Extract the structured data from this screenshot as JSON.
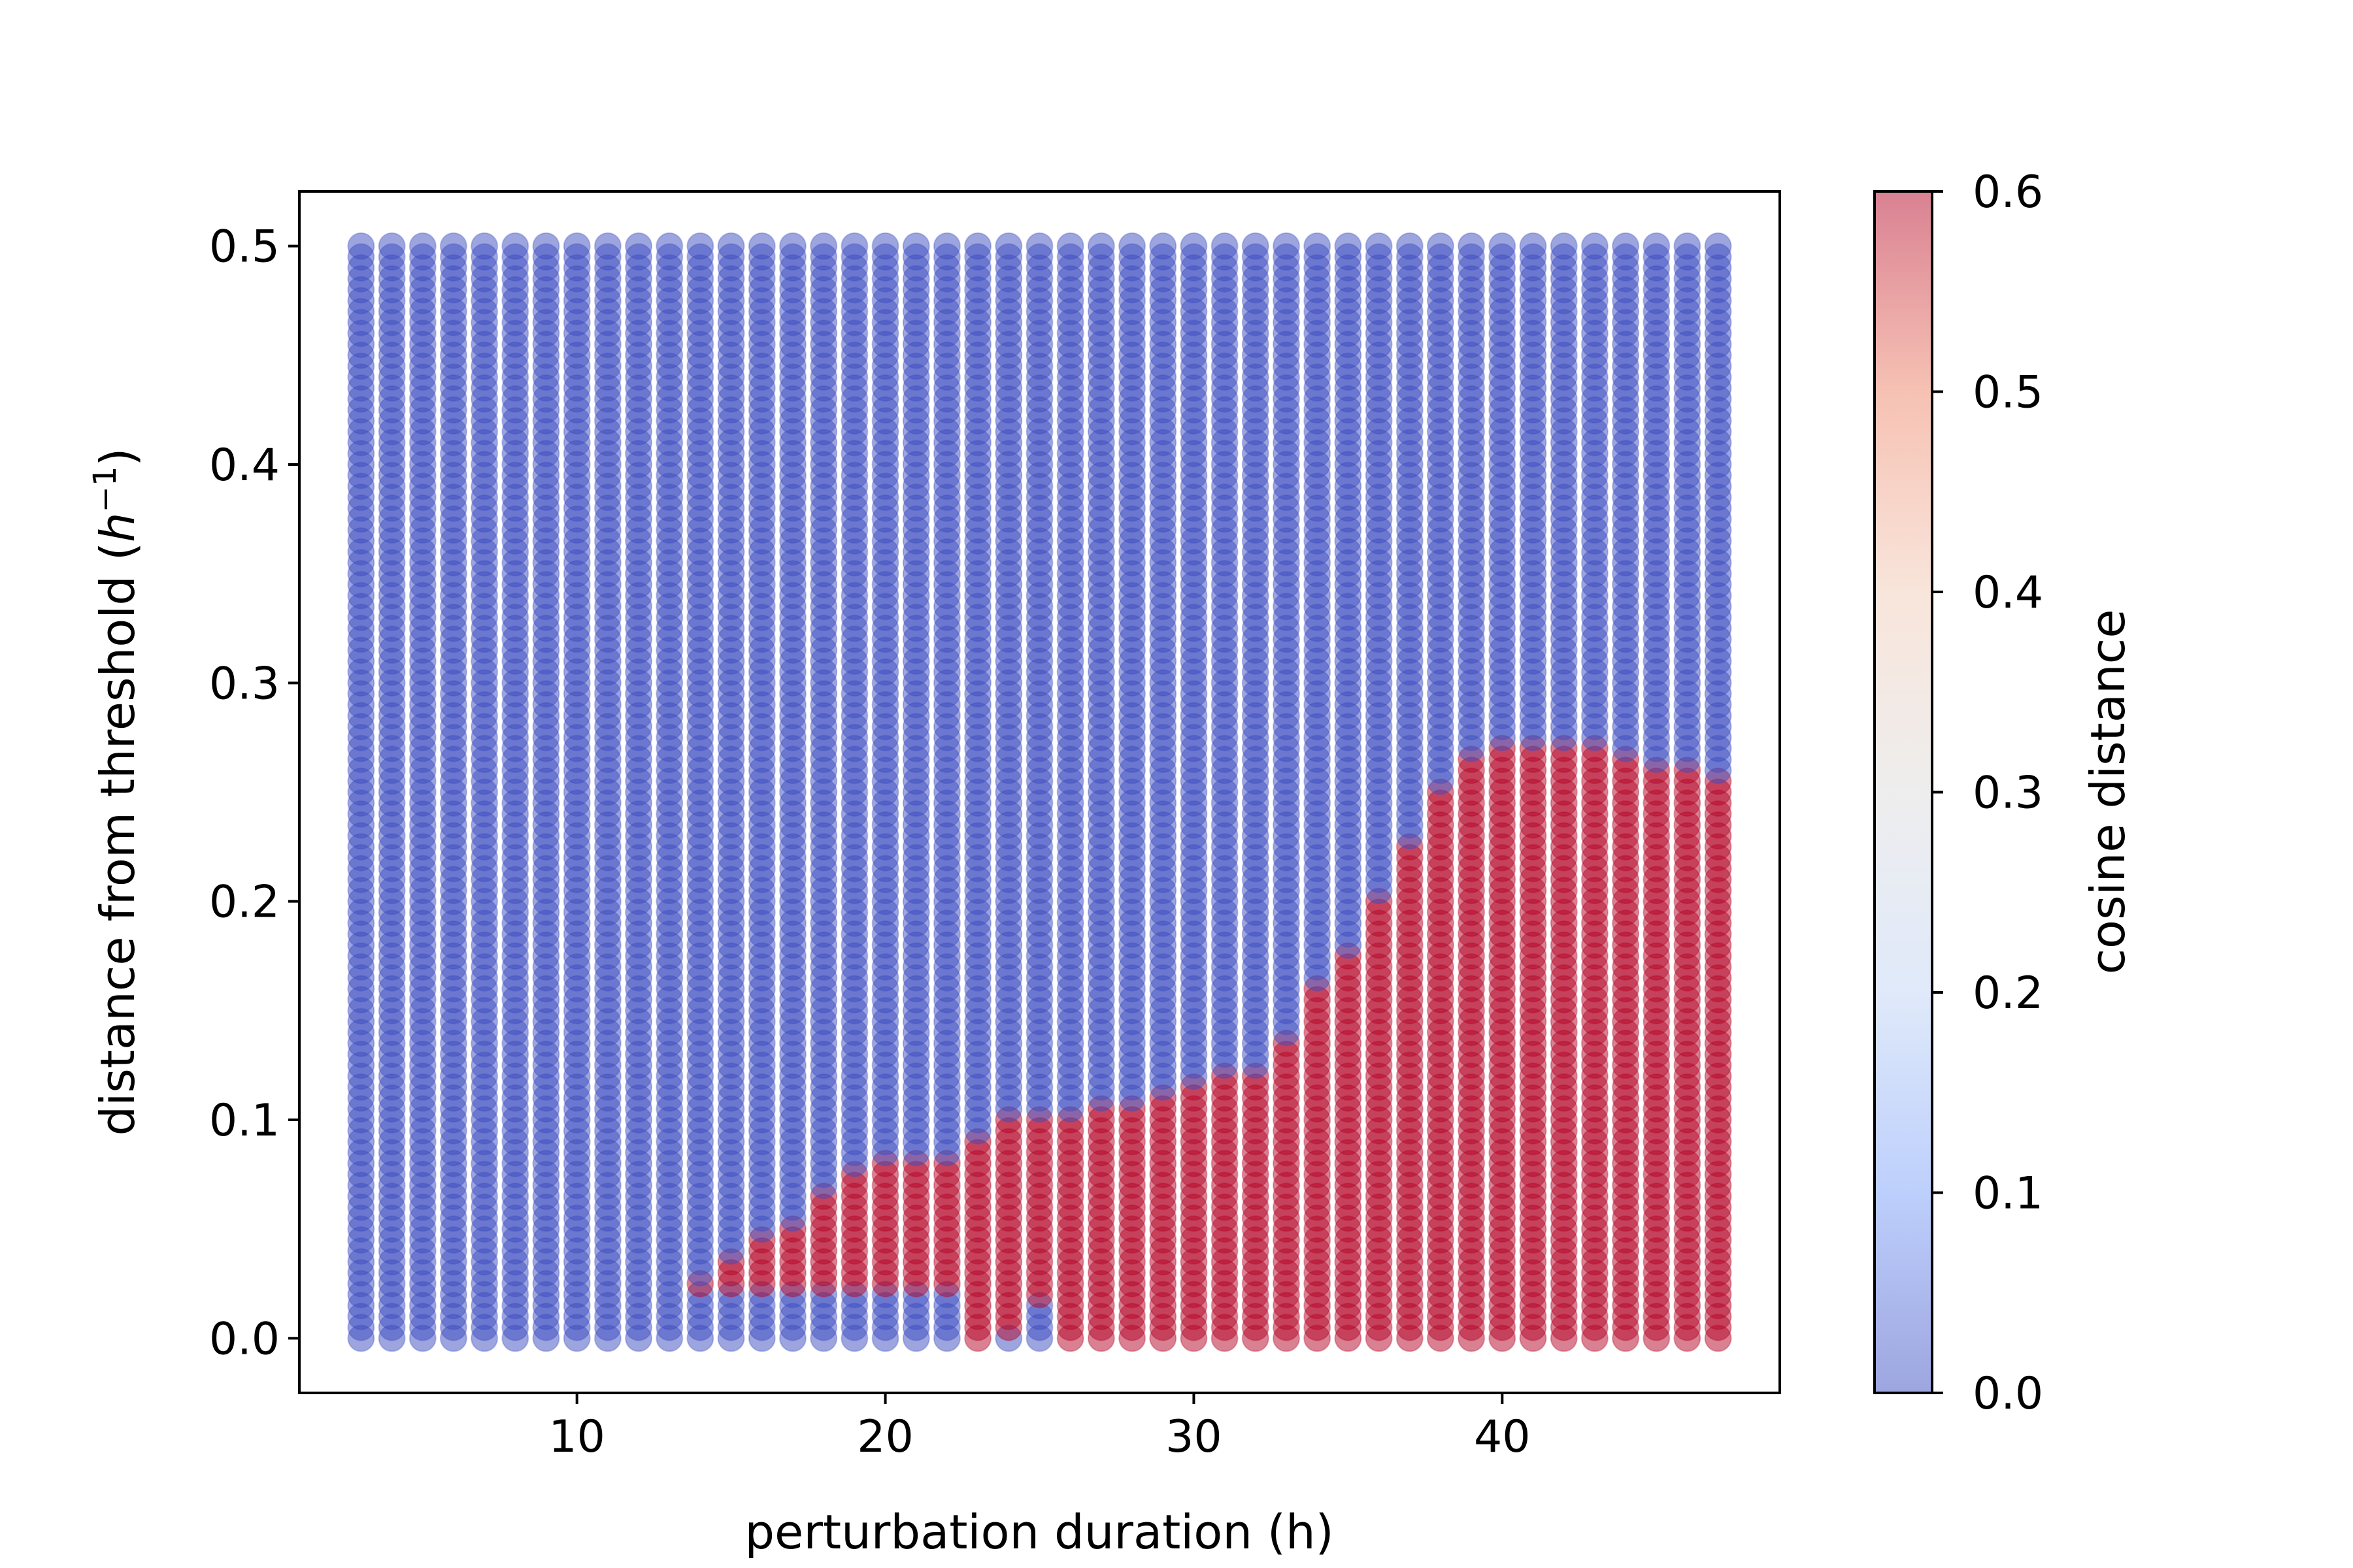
{
  "chart_data": {
    "type": "scatter",
    "xlabel": "perturbation duration (h)",
    "ylabel_text": "distance from threshold (",
    "ylabel_unit_base": "h",
    "ylabel_unit_exp": "−1",
    "ylabel_close": ")",
    "xlim": [
      1,
      49
    ],
    "ylim": [
      -0.025,
      0.525
    ],
    "x_ticks": [
      10,
      20,
      30,
      40
    ],
    "x_tick_labels": [
      "10",
      "20",
      "30",
      "40"
    ],
    "y_ticks": [
      0.0,
      0.1,
      0.2,
      0.3,
      0.4,
      0.5
    ],
    "y_tick_labels": [
      "0.0",
      "0.1",
      "0.2",
      "0.3",
      "0.4",
      "0.5"
    ],
    "x_values": {
      "start": 3,
      "end": 47,
      "step": 1
    },
    "y_values": {
      "start": 0.0,
      "end": 0.5,
      "step": 0.005
    },
    "colormap": "coolwarm",
    "marker_alpha": 0.5,
    "color_low": "#3b4cc0",
    "color_high": "#b40426",
    "colorbar": {
      "label": "cosine distance",
      "range": [
        0.0,
        0.6
      ],
      "ticks": [
        0.0,
        0.1,
        0.2,
        0.3,
        0.4,
        0.5,
        0.6
      ],
      "tick_labels": [
        "0.0",
        "0.1",
        "0.2",
        "0.3",
        "0.4",
        "0.5",
        "0.6"
      ]
    },
    "low_value": 0.0,
    "high_value": 0.6,
    "boundary_upper": [
      {
        "x": 14,
        "y": 0.025
      },
      {
        "x": 15,
        "y": 0.035
      },
      {
        "x": 16,
        "y": 0.045
      },
      {
        "x": 17,
        "y": 0.05
      },
      {
        "x": 18,
        "y": 0.065
      },
      {
        "x": 19,
        "y": 0.075
      },
      {
        "x": 20,
        "y": 0.08
      },
      {
        "x": 21,
        "y": 0.08
      },
      {
        "x": 22,
        "y": 0.08
      },
      {
        "x": 23,
        "y": 0.09
      },
      {
        "x": 24,
        "y": 0.1
      },
      {
        "x": 25,
        "y": 0.1
      },
      {
        "x": 26,
        "y": 0.1
      },
      {
        "x": 27,
        "y": 0.105
      },
      {
        "x": 28,
        "y": 0.105
      },
      {
        "x": 29,
        "y": 0.11
      },
      {
        "x": 30,
        "y": 0.115
      },
      {
        "x": 31,
        "y": 0.12
      },
      {
        "x": 32,
        "y": 0.12
      },
      {
        "x": 33,
        "y": 0.135
      },
      {
        "x": 34,
        "y": 0.16
      },
      {
        "x": 35,
        "y": 0.175
      },
      {
        "x": 36,
        "y": 0.2
      },
      {
        "x": 37,
        "y": 0.225
      },
      {
        "x": 38,
        "y": 0.25
      },
      {
        "x": 39,
        "y": 0.265
      },
      {
        "x": 40,
        "y": 0.27
      },
      {
        "x": 41,
        "y": 0.27
      },
      {
        "x": 42,
        "y": 0.27
      },
      {
        "x": 43,
        "y": 0.27
      },
      {
        "x": 44,
        "y": 0.265
      },
      {
        "x": 45,
        "y": 0.26
      },
      {
        "x": 46,
        "y": 0.26
      },
      {
        "x": 47,
        "y": 0.255
      }
    ],
    "boundary_lower": [
      {
        "x": 14,
        "y": 0.025
      },
      {
        "x": 15,
        "y": 0.025
      },
      {
        "x": 16,
        "y": 0.025
      },
      {
        "x": 17,
        "y": 0.025
      },
      {
        "x": 18,
        "y": 0.025
      },
      {
        "x": 19,
        "y": 0.025
      },
      {
        "x": 20,
        "y": 0.025
      },
      {
        "x": 21,
        "y": 0.025
      },
      {
        "x": 22,
        "y": 0.025
      },
      {
        "x": 23,
        "y": 0.0
      },
      {
        "x": 24,
        "y": 0.005
      },
      {
        "x": 25,
        "y": 0.02
      },
      {
        "x": 26,
        "y": 0.0
      }
    ]
  }
}
